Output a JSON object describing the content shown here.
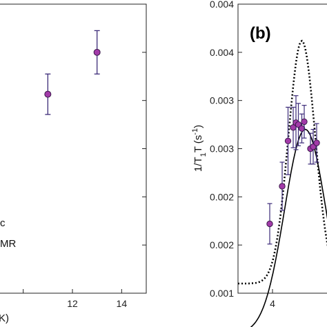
{
  "chart_data": [
    {
      "panel": "a",
      "type": "scatter",
      "xlabel_fragment": "K)",
      "legend_fragments": [
        "c",
        "MR"
      ],
      "x_ticks": [
        "12",
        "14"
      ],
      "x_range": [
        9.0,
        15.0
      ],
      "y_range": [
        0,
        6
      ],
      "points": [
        {
          "x": 11,
          "y": 4.13,
          "err": 0.42
        },
        {
          "x": 13,
          "y": 5.0,
          "err": 0.45
        }
      ],
      "marker_color": "#a23aa8",
      "error_color": "#3b2a78"
    },
    {
      "panel": "b",
      "panel_label": "(b)",
      "type": "scatter",
      "ylabel_main": "1/T",
      "ylabel_sub1": "1",
      "ylabel_mid": "T (s",
      "ylabel_sup": "-1",
      "ylabel_end": ")",
      "x_ticks": [
        "4"
      ],
      "y_ticks": [
        "0.001",
        "0.002",
        "0.002",
        "0.003",
        "0.003",
        "0.004",
        "0.004"
      ],
      "x_range": [
        3.0,
        5.8
      ],
      "y_range": [
        0.001,
        0.004
      ],
      "points": [
        {
          "x": 3.92,
          "y": 0.00172,
          "err": 0.00021
        },
        {
          "x": 4.28,
          "y": 0.00211,
          "err": 0.00025
        },
        {
          "x": 4.45,
          "y": 0.00258,
          "err": 0.00035
        },
        {
          "x": 4.6,
          "y": 0.00272,
          "err": 0.00021
        },
        {
          "x": 4.68,
          "y": 0.00277,
          "err": 0.00028
        },
        {
          "x": 4.75,
          "y": 0.00275,
          "err": 0.00022
        },
        {
          "x": 4.85,
          "y": 0.00271,
          "err": 0.00015
        },
        {
          "x": 4.92,
          "y": 0.00278,
          "err": 0.00017
        },
        {
          "x": 5.1,
          "y": 0.0025,
          "err": 0.00016
        },
        {
          "x": 5.18,
          "y": 0.00252,
          "err": 0.00018
        },
        {
          "x": 5.28,
          "y": 0.00256,
          "err": 0.0002
        }
      ],
      "solid_curve": {
        "peak_x": 4.95,
        "peak_y": 0.0027,
        "width": 0.85,
        "base": 0.00058
      },
      "dotted_curve": {
        "peak_x": 4.85,
        "peak_y": 0.00362,
        "width": 0.55,
        "base": 0.0011
      },
      "marker_color": "#a23aa8",
      "error_color": "#3b2a78"
    }
  ]
}
